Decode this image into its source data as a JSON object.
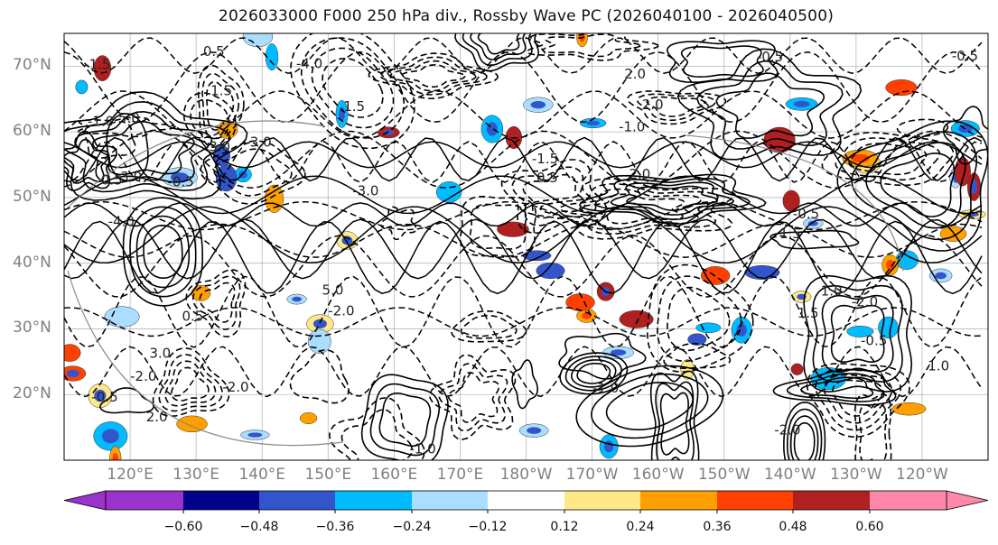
{
  "title": "2026033000 F000 250 hPa div., Rossby Wave PC (2026040100 - 2026040500)",
  "chart_data": {
    "type": "contour-map",
    "title": "2026033000 F000 250 hPa div., Rossby Wave PC (2026040100 - 2026040500)",
    "lat_ticks": [
      "70°N",
      "60°N",
      "50°N",
      "40°N",
      "30°N",
      "20°N"
    ],
    "lat_values": [
      70,
      60,
      50,
      40,
      30,
      20
    ],
    "lon_ticks": [
      "120°E",
      "130°E",
      "140°E",
      "150°E",
      "160°E",
      "170°E",
      "180°W",
      "170°W",
      "160°W",
      "150°W",
      "140°W",
      "130°W",
      "120°W"
    ],
    "lon_values": [
      120,
      130,
      140,
      150,
      160,
      170,
      180,
      190,
      200,
      210,
      220,
      230,
      240
    ],
    "lat_range": [
      10,
      75
    ],
    "lon_range": [
      110,
      250
    ],
    "colorbar": {
      "ticks": [
        "−0.60",
        "−0.48",
        "−0.36",
        "−0.24",
        "−0.12",
        "0.12",
        "0.24",
        "0.36",
        "0.48",
        "0.60"
      ],
      "colors": [
        "#9933cc",
        "#000088",
        "#3355cc",
        "#00bbff",
        "#aaddff",
        "#ffffff",
        "#ffe888",
        "#ffa000",
        "#ff4000",
        "#b02020",
        "#ff88aa"
      ]
    },
    "contour_labels": [
      "5.0",
      "3.0",
      "2.0",
      "1.5",
      "1.0",
      "0.5",
      "-0.5",
      "-1.0",
      "-1.5",
      "-2.0",
      "-3.0",
      "-4.0"
    ]
  }
}
